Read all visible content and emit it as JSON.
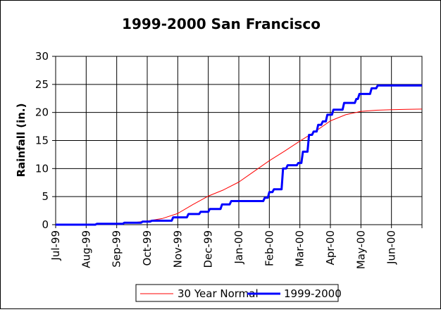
{
  "chart_data": {
    "type": "line",
    "title": "1999-2000 San Francisco",
    "xlabel": "",
    "ylabel": "Rainfall (in.)",
    "ylim": [
      0,
      30
    ],
    "yticks": [
      0,
      5,
      10,
      15,
      20,
      25,
      30
    ],
    "categories": [
      "Jul-99",
      "Aug-99",
      "Sep-99",
      "Oct-99",
      "Nov-99",
      "Dec-99",
      "Jan-00",
      "Feb-00",
      "Mar-00",
      "Apr-00",
      "May-00",
      "Jun-00"
    ],
    "xlim": [
      0,
      12
    ],
    "grid": true,
    "legend": "bottom",
    "series": [
      {
        "name": "30 Year Normal",
        "color": "#ff0000",
        "style": "thin",
        "x": [
          0,
          1,
          2,
          2.5,
          3,
          3.5,
          4,
          4.5,
          5,
          5.5,
          6,
          6.5,
          7,
          7.5,
          8,
          8.5,
          9,
          9.5,
          10,
          10.5,
          11,
          11.5,
          12
        ],
        "y": [
          0,
          0.05,
          0.2,
          0.35,
          0.65,
          1.1,
          2.0,
          3.6,
          5.1,
          6.2,
          7.6,
          9.5,
          11.4,
          13.1,
          14.9,
          16.6,
          18.5,
          19.6,
          20.2,
          20.4,
          20.5,
          20.55,
          20.6
        ]
      },
      {
        "name": "1999-2000",
        "color": "#0000ff",
        "style": "thick",
        "x": [
          0,
          1.3,
          1.35,
          2.2,
          2.25,
          2.8,
          2.85,
          3.1,
          3.15,
          3.8,
          3.85,
          4.3,
          4.35,
          4.7,
          4.75,
          5.0,
          5.05,
          5.4,
          5.45,
          5.7,
          5.75,
          6.8,
          6.85,
          6.95,
          7.0,
          7.1,
          7.15,
          7.4,
          7.45,
          7.55,
          7.6,
          7.9,
          7.95,
          8.05,
          8.1,
          8.25,
          8.3,
          8.4,
          8.45,
          8.55,
          8.6,
          8.7,
          8.75,
          8.85,
          8.9,
          9.05,
          9.1,
          9.4,
          9.45,
          9.8,
          9.85,
          9.9,
          9.95,
          10.3,
          10.35,
          10.5,
          10.55,
          12
        ],
        "y": [
          0,
          0,
          0.15,
          0.15,
          0.35,
          0.35,
          0.55,
          0.55,
          0.7,
          0.7,
          1.3,
          1.3,
          1.9,
          1.9,
          2.3,
          2.3,
          2.8,
          2.8,
          3.6,
          3.6,
          4.2,
          4.2,
          4.8,
          4.8,
          5.8,
          5.8,
          6.3,
          6.3,
          10.0,
          10.0,
          10.6,
          10.6,
          11.0,
          11.0,
          13.0,
          13.0,
          16.0,
          16.0,
          16.6,
          16.6,
          17.8,
          17.8,
          18.4,
          18.4,
          19.6,
          19.6,
          20.5,
          20.5,
          21.7,
          21.7,
          22.4,
          22.4,
          23.3,
          23.3,
          24.3,
          24.3,
          24.8,
          24.8
        ]
      }
    ]
  }
}
